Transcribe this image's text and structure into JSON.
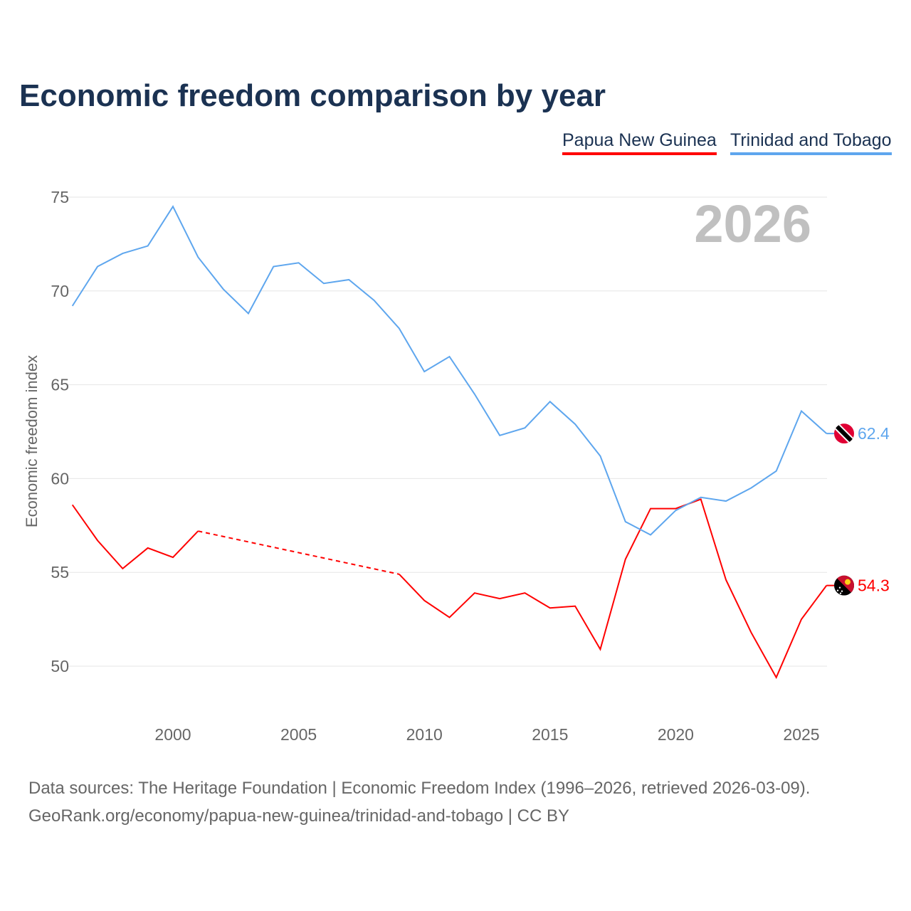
{
  "chart_data": {
    "type": "line",
    "title": "Economic freedom comparison by year",
    "ylabel": "Economic freedom index",
    "xlabel": "",
    "ylim": [
      46.5,
      76
    ],
    "xlim": [
      1996,
      2026
    ],
    "yticks": [
      50,
      55,
      60,
      65,
      70,
      75
    ],
    "xticks": [
      2000,
      2005,
      2010,
      2015,
      2020,
      2025
    ],
    "grid": true,
    "legend_position": "top-right",
    "year_watermark": "2026",
    "x": [
      1996,
      1997,
      1998,
      1999,
      2000,
      2001,
      2002,
      2003,
      2004,
      2005,
      2006,
      2007,
      2008,
      2009,
      2010,
      2011,
      2012,
      2013,
      2014,
      2015,
      2016,
      2017,
      2018,
      2019,
      2020,
      2021,
      2022,
      2023,
      2024,
      2025,
      2026
    ],
    "series": [
      {
        "name": "Papua New Guinea",
        "color": "#ff0000",
        "end_label": "54.3",
        "values": [
          58.6,
          56.7,
          55.2,
          56.3,
          55.8,
          57.2,
          null,
          null,
          null,
          null,
          null,
          null,
          null,
          54.9,
          53.5,
          52.6,
          53.9,
          53.6,
          53.9,
          53.1,
          53.2,
          50.9,
          55.7,
          58.4,
          58.4,
          58.9,
          54.6,
          51.8,
          49.4,
          52.5,
          54.3
        ]
      },
      {
        "name": "Trinidad and Tobago",
        "color": "#5ea6ee",
        "end_label": "62.4",
        "values": [
          69.2,
          71.3,
          72.0,
          72.4,
          74.5,
          71.8,
          70.1,
          68.8,
          71.3,
          71.5,
          70.4,
          70.6,
          69.5,
          68.0,
          65.7,
          66.5,
          64.5,
          62.3,
          62.7,
          64.1,
          62.9,
          61.2,
          57.7,
          57.0,
          58.3,
          59.0,
          58.8,
          59.5,
          60.4,
          63.6,
          62.4
        ]
      }
    ]
  },
  "footer": {
    "line1": "Data sources: The Heritage Foundation | Economic Freedom Index (1996–2026, retrieved 2026-03-09).",
    "line2": "GeoRank.org/economy/papua-new-guinea/trinidad-and-tobago | CC BY"
  }
}
